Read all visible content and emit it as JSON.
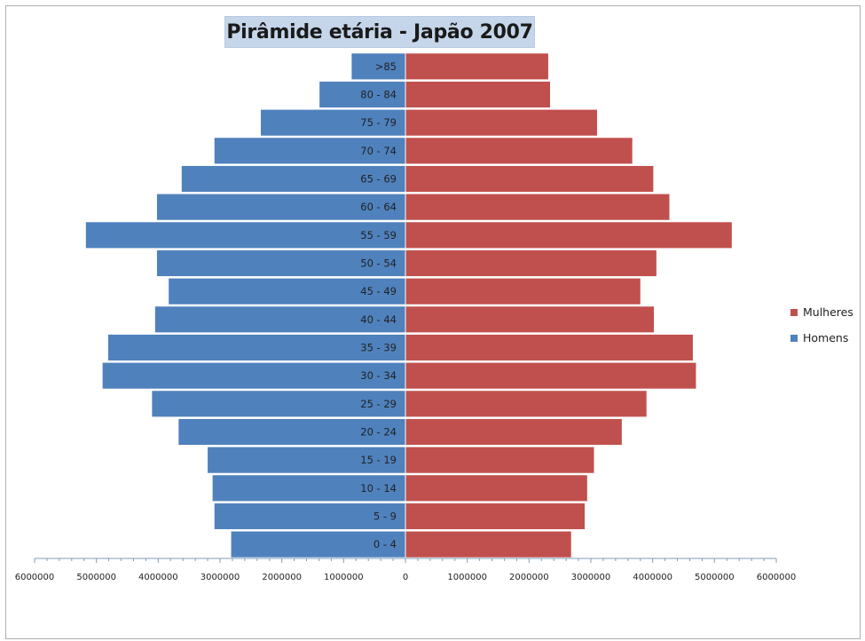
{
  "chart_data": {
    "type": "bar",
    "orientation": "horizontal",
    "title": "Pirâmide etária - Japão 2007",
    "categories": [
      "0 - 4",
      "5 - 9",
      "10 - 14",
      "15 - 19",
      "20 - 24",
      "25 - 29",
      "30 - 34",
      "35 - 39",
      "40 - 44",
      "45 - 49",
      "50 - 54",
      "55 - 59",
      "60 - 64",
      "65 - 69",
      "70 - 74",
      "75 - 79",
      "80 - 84",
      ">85"
    ],
    "series": [
      {
        "name": "Mulheres",
        "color": "#c0504d",
        "values": [
          2680000,
          2900000,
          2940000,
          3050000,
          3500000,
          3900000,
          4700000,
          4650000,
          4020000,
          3800000,
          4060000,
          5280000,
          4270000,
          4010000,
          3670000,
          3100000,
          2340000,
          2310000
        ]
      },
      {
        "name": "Homens",
        "color": "#4f81bd",
        "values": [
          2820000,
          3090000,
          3120000,
          3200000,
          3670000,
          4100000,
          4900000,
          4810000,
          4050000,
          3830000,
          4020000,
          5170000,
          4020000,
          3620000,
          3090000,
          2340000,
          1390000,
          870000
        ]
      }
    ],
    "xlim": [
      -6000000,
      6000000
    ],
    "x_ticks": [
      "6000000",
      "5000000",
      "4000000",
      "3000000",
      "2000000",
      "1000000",
      "0",
      "1000000",
      "2000000",
      "3000000",
      "4000000",
      "5000000",
      "6000000"
    ],
    "legend": "right",
    "grid": false
  }
}
